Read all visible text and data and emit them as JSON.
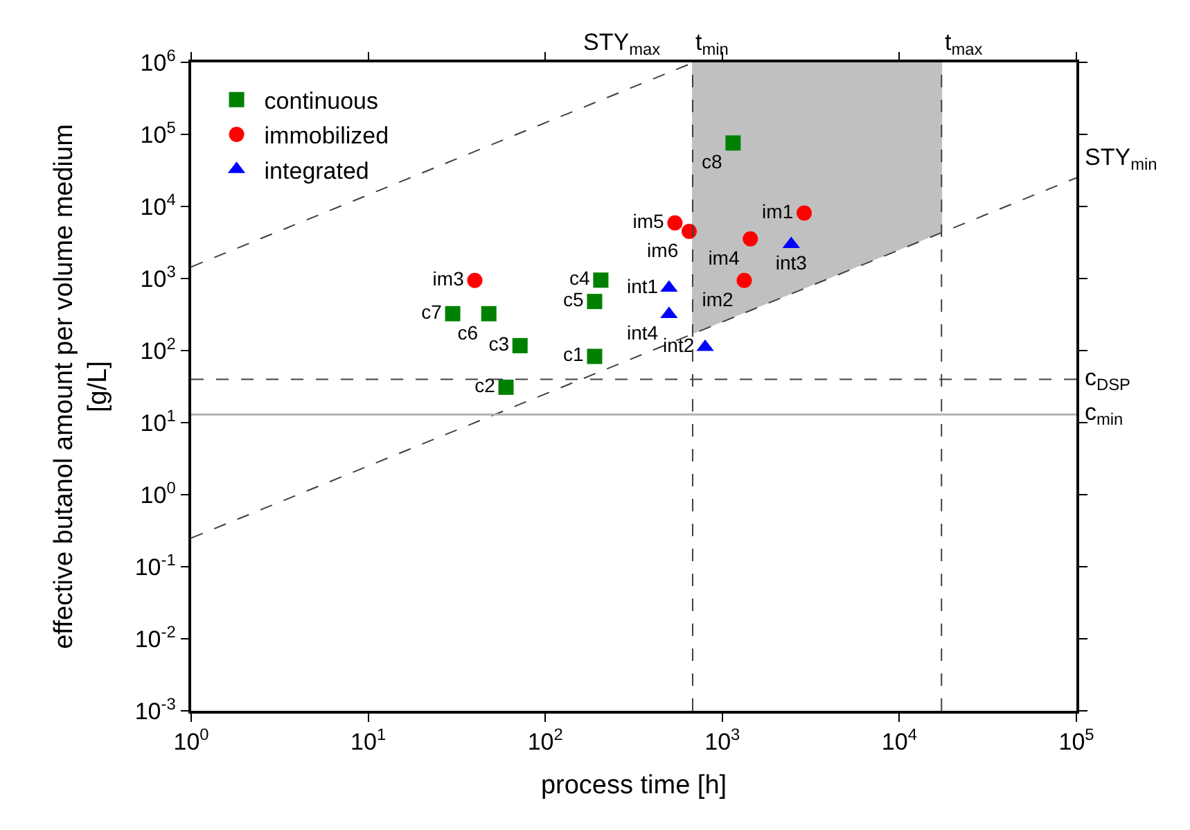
{
  "chart_data": {
    "type": "scatter",
    "xlabel": "process time [h]",
    "ylabel": "effective butanol amount per volume medium\n[g/L]",
    "log": "xy",
    "grid": false,
    "legend": "top left",
    "xlim": [
      1,
      100000
    ],
    "ylim": [
      0.001,
      1000000
    ],
    "xticks": [
      {
        "value": 1,
        "label": "10$^{0}$"
      },
      {
        "value": 10,
        "label": "10$^{1}$"
      },
      {
        "value": 100,
        "label": "10$^{2}$"
      },
      {
        "value": 1000,
        "label": "10$^{3}$"
      },
      {
        "value": 10000,
        "label": "10$^{4}$"
      },
      {
        "value": 100000,
        "label": "10$^{5}$"
      }
    ],
    "yticks": [
      {
        "value": 0.001,
        "label": "10$^{-3}$"
      },
      {
        "value": 0.01,
        "label": "10$^{-2}$"
      },
      {
        "value": 0.1,
        "label": "10$^{-1}$"
      },
      {
        "value": 1,
        "label": "10$^{0}$"
      },
      {
        "value": 10,
        "label": "10$^{1}$"
      },
      {
        "value": 100,
        "label": "10$^{2}$"
      },
      {
        "value": 1000,
        "label": "10$^{3}$"
      },
      {
        "value": 10000,
        "label": "10$^{4}$"
      },
      {
        "value": 100000,
        "label": "10$^{5}$"
      },
      {
        "value": 1000000,
        "label": "10$^{6}$"
      }
    ],
    "series": [
      {
        "type": "area",
        "color": "#c0c0c0",
        "x": [
          680,
          680,
          17300,
          17300
        ],
        "values": [
          170,
          1000000,
          1000000,
          4325
        ]
      },
      {
        "type": "line",
        "color": "#404040",
        "line_style": "dashed",
        "x": [
          1,
          690
        ],
        "values": [
          1450,
          1000000
        ]
      },
      {
        "type": "line",
        "color": "#404040",
        "line_style": "dashed",
        "x": [
          1,
          100000
        ],
        "values": [
          0.25,
          25000
        ]
      },
      {
        "name": "continuous",
        "color": "#008000",
        "marker": "square",
        "x": [
          190,
          60,
          72,
          206,
          190,
          48,
          30,
          1150
        ],
        "values": [
          83,
          31,
          117,
          950,
          480,
          325,
          325,
          76000
        ],
        "value_labels": [
          "c1",
          "c2",
          "c3",
          "c4",
          "c5",
          "c6",
          "c7",
          "c8"
        ]
      },
      {
        "name": "immobilized",
        "color": "#ff0000",
        "marker": "circle",
        "x": [
          2900,
          1330,
          40,
          1440,
          540,
          650
        ],
        "values": [
          8100,
          940,
          940,
          3550,
          5900,
          4500
        ],
        "value_labels": [
          "im1",
          "im2",
          "im3",
          "im4",
          "im5",
          "im6"
        ]
      },
      {
        "name": "integrated",
        "color": "#0000ff",
        "marker": "triangle",
        "x": [
          500,
          800,
          2450,
          500
        ],
        "values": [
          740,
          112,
          3000,
          320
        ],
        "value_labels": [
          "int1",
          "int2",
          "int3",
          "int4"
        ]
      }
    ],
    "ref_lines": [
      {
        "axis": "x",
        "value": 680,
        "label": "t$_{min}$",
        "color": "#404040",
        "line_style": "dashed"
      },
      {
        "axis": "x",
        "value": 17300,
        "label": "t$_{max}$",
        "color": "#404040",
        "line_style": "dashed"
      },
      {
        "axis": "y",
        "value": 40,
        "label": "c$_{DSP}$",
        "color": "#404040",
        "line_style": "dashed"
      },
      {
        "axis": "y",
        "value": 13,
        "label": "c$_{min}$",
        "color": "#b0b0b0",
        "line_style": "solid"
      }
    ],
    "annotations": [
      {
        "text": "STY$_{max}$",
        "x": 690,
        "y": 1000000
      },
      {
        "text": "STY$_{min}$",
        "x": 100000,
        "y": 25000
      }
    ]
  }
}
